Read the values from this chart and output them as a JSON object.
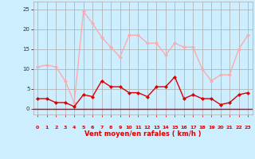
{
  "x": [
    0,
    1,
    2,
    3,
    4,
    5,
    6,
    7,
    8,
    9,
    10,
    11,
    12,
    13,
    14,
    15,
    16,
    17,
    18,
    19,
    20,
    21,
    22,
    23
  ],
  "rafales": [
    10.5,
    11,
    10.5,
    7,
    1.5,
    24.5,
    21.5,
    18,
    15.5,
    13,
    18.5,
    18.5,
    16.5,
    16.5,
    13.5,
    16.5,
    15.5,
    15.5,
    10,
    7,
    8.5,
    8.5,
    15,
    18.5
  ],
  "vent_moyen": [
    2.5,
    2.5,
    1.5,
    1.5,
    0.5,
    3.5,
    3,
    7,
    5.5,
    5.5,
    4,
    4,
    3,
    5.5,
    5.5,
    8,
    2.5,
    3.5,
    2.5,
    2.5,
    1,
    1.5,
    3.5,
    4
  ],
  "bg_color": "#cceeff",
  "grid_color": "#aaaaaa",
  "line_color_rafales": "#ffaaaa",
  "line_color_vent": "#dd0000",
  "xlabel": "Vent moyen/en rafales ( km/h )",
  "ylim": [
    -1.5,
    27
  ],
  "xlim": [
    -0.5,
    23.5
  ],
  "yticks": [
    0,
    5,
    10,
    15,
    20,
    25
  ],
  "xticks": [
    0,
    1,
    2,
    3,
    4,
    5,
    6,
    7,
    8,
    9,
    10,
    11,
    12,
    13,
    14,
    15,
    16,
    17,
    18,
    19,
    20,
    21,
    22,
    23
  ]
}
